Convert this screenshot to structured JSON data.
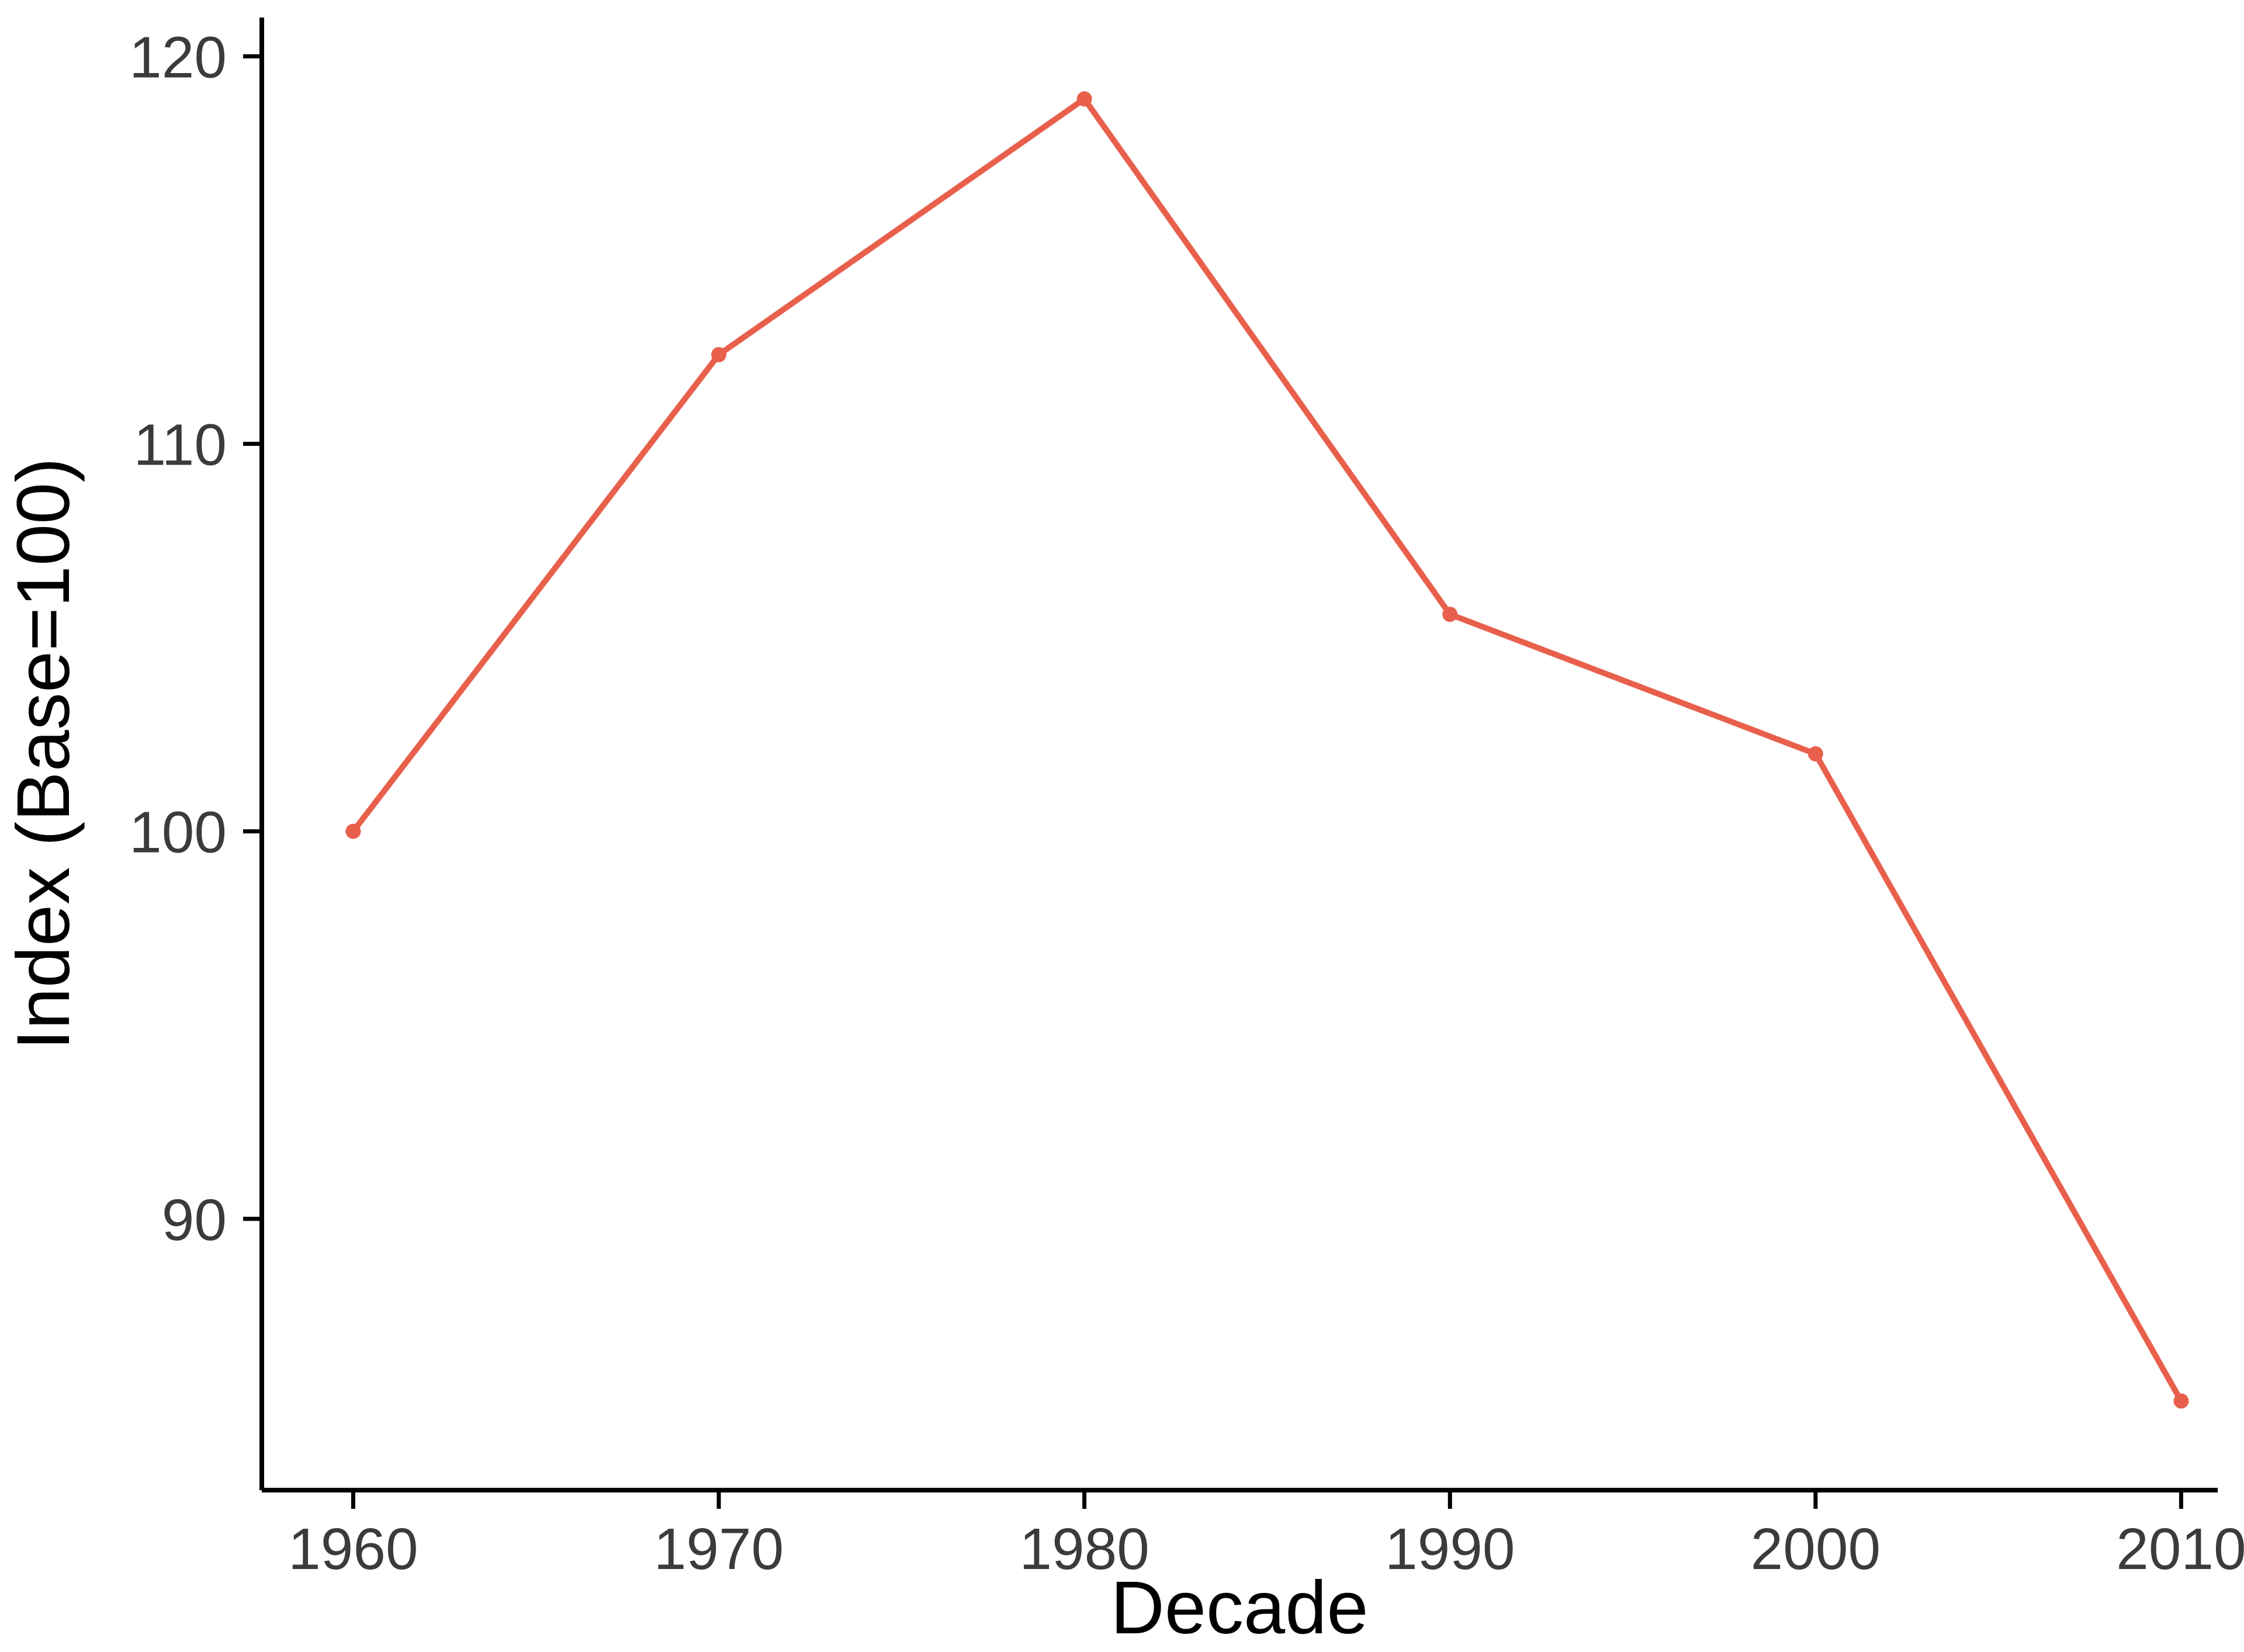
{
  "chart_data": {
    "type": "line",
    "title": "",
    "xlabel": "Decade",
    "ylabel": "Index (Base=100)",
    "x": [
      1960,
      1970,
      1980,
      1990,
      2000,
      2010
    ],
    "values": [
      100,
      112.3,
      118.9,
      105.6,
      102.0,
      85.3
    ],
    "series_name": "Index",
    "x_ticks": [
      "1960",
      "1970",
      "1980",
      "1990",
      "2000",
      "2010"
    ],
    "x_tick_values": [
      1960,
      1970,
      1980,
      1990,
      2000,
      2010
    ],
    "y_ticks": [
      "90",
      "100",
      "110",
      "120"
    ],
    "y_tick_values": [
      90,
      100,
      110,
      120
    ],
    "xlim": [
      1957.5,
      2011
    ],
    "ylim": [
      83,
      121
    ],
    "grid": false,
    "legend": "none",
    "line_color": "#e8604c",
    "point_color": "#e8604c",
    "axis_color": "#000000",
    "tick_label_color": "#3b3b3b",
    "background": "#ffffff"
  }
}
